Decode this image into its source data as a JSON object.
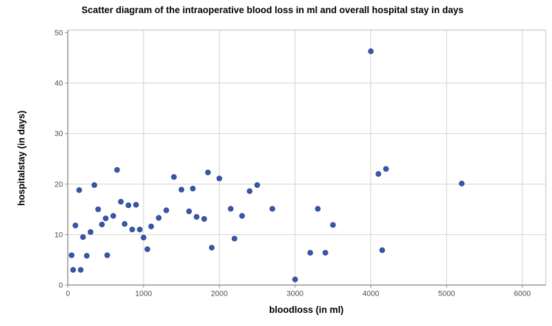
{
  "figure": {
    "title": "Scatter diagram of the intraoperative blood loss in ml and overall hospital stay in days"
  },
  "chart_data": {
    "type": "scatter",
    "title": "Scatter diagram of the intraoperative blood loss in ml and overall hospital stay in days",
    "xlabel": "bloodloss (in ml)",
    "ylabel": "hospitalstay (in days)",
    "xlim": [
      0,
      6000
    ],
    "ylim": [
      0,
      50
    ],
    "xticks": [
      0,
      1000,
      2000,
      3000,
      4000,
      5000,
      6000
    ],
    "yticks": [
      0,
      10,
      20,
      30,
      40,
      50
    ],
    "grid": true,
    "legend": false,
    "points": [
      [
        50,
        5.9
      ],
      [
        70,
        3
      ],
      [
        100,
        11.8
      ],
      [
        150,
        18.8
      ],
      [
        170,
        3
      ],
      [
        200,
        9.5
      ],
      [
        250,
        5.8
      ],
      [
        300,
        10.5
      ],
      [
        350,
        19.8
      ],
      [
        400,
        15
      ],
      [
        450,
        12
      ],
      [
        500,
        13.2
      ],
      [
        520,
        5.9
      ],
      [
        600,
        13.7
      ],
      [
        650,
        22.8
      ],
      [
        700,
        16.5
      ],
      [
        750,
        12.1
      ],
      [
        800,
        15.8
      ],
      [
        850,
        11
      ],
      [
        900,
        15.9
      ],
      [
        950,
        11
      ],
      [
        1000,
        9.4
      ],
      [
        1050,
        7.1
      ],
      [
        1100,
        11.6
      ],
      [
        1200,
        13.3
      ],
      [
        1300,
        14.8
      ],
      [
        1400,
        21.4
      ],
      [
        1500,
        18.9
      ],
      [
        1600,
        14.6
      ],
      [
        1650,
        19.1
      ],
      [
        1700,
        13.5
      ],
      [
        1800,
        13.1
      ],
      [
        1850,
        22.3
      ],
      [
        1900,
        7.4
      ],
      [
        2000,
        21.1
      ],
      [
        2150,
        15.1
      ],
      [
        2200,
        9.2
      ],
      [
        2300,
        13.7
      ],
      [
        2400,
        18.6
      ],
      [
        2500,
        19.8
      ],
      [
        2700,
        15.1
      ],
      [
        3000,
        1.1
      ],
      [
        3200,
        6.4
      ],
      [
        3300,
        15.1
      ],
      [
        3400,
        6.4
      ],
      [
        3500,
        11.9
      ],
      [
        4000,
        46.3
      ],
      [
        4100,
        22
      ],
      [
        4150,
        6.9
      ],
      [
        4200,
        23
      ],
      [
        5200,
        20.1
      ]
    ],
    "style": {
      "marker_fill": "#3a57a7",
      "marker_stroke": "#2b4896",
      "grid_color": "#d2d2d2",
      "frame_color": "#c6c6c6",
      "axis_color": "#9a9a9a",
      "tick_label_color": "#4d4d4d"
    }
  }
}
